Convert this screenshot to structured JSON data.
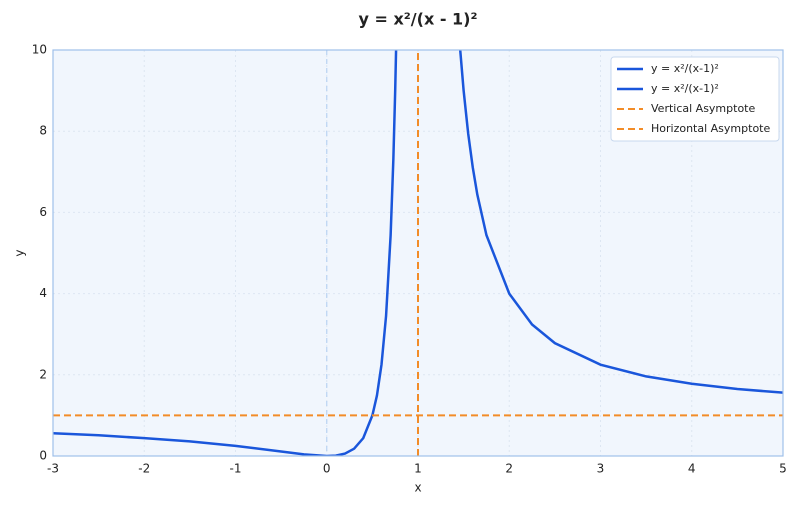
{
  "chart_data": {
    "type": "line",
    "title": "y = x²/(x - 1)²",
    "x_label": "x",
    "y_label": "y",
    "xlim": [
      -3,
      5
    ],
    "ylim": [
      0,
      10
    ],
    "xticks": [
      -3,
      -2,
      -1,
      0,
      1,
      2,
      3,
      4,
      5
    ],
    "yticks": [
      0,
      2,
      4,
      6,
      8,
      10
    ],
    "grid": true,
    "legend": "upper right",
    "x_reference": 0,
    "series": [
      {
        "name": "y = x²/(x-1)²",
        "color": "#1a56db",
        "dash": false,
        "x": [
          -3,
          -2.5,
          -2,
          -1.5,
          -1,
          -0.5,
          -0.25,
          0,
          0.1,
          0.2,
          0.3,
          0.4,
          0.5,
          0.55,
          0.6,
          0.65,
          0.7,
          0.73,
          0.75,
          0.76
        ],
        "values": [
          0.56,
          0.51,
          0.44,
          0.36,
          0.25,
          0.11,
          0.04,
          0,
          0.01,
          0.06,
          0.18,
          0.44,
          1,
          1.49,
          2.25,
          3.45,
          5.44,
          7.31,
          9,
          10.03
        ]
      },
      {
        "name": "y = x²/(x-1)²",
        "color": "#1a56db",
        "dash": false,
        "x": [
          1.46,
          1.5,
          1.55,
          1.6,
          1.65,
          1.75,
          2,
          2.25,
          2.5,
          3,
          3.5,
          4,
          4.5,
          5
        ],
        "values": [
          10.07,
          9,
          7.94,
          7.11,
          6.44,
          5.44,
          4,
          3.24,
          2.78,
          2.25,
          1.96,
          1.78,
          1.65,
          1.56
        ]
      },
      {
        "name": "Vertical Asymptote",
        "color": "#f28c28",
        "dash": true,
        "x": [
          1,
          1
        ],
        "values": [
          0,
          10
        ]
      },
      {
        "name": "Horizontal Asymptote",
        "color": "#f28c28",
        "dash": true,
        "x": [
          -3,
          5
        ],
        "values": [
          1,
          1
        ]
      }
    ]
  }
}
